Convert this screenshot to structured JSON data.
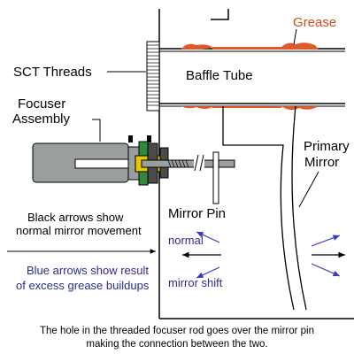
{
  "labels": {
    "grease": "Grease",
    "sct_threads": "SCT Threads",
    "baffle_tube": "Baffle Tube",
    "focuser_line1": "Focuser",
    "focuser_line2": "Assembly",
    "primary_line1": "Primary",
    "primary_line2": "Mirror",
    "mirror_pin": "Mirror Pin",
    "black_arrows_line1": "Black arrows show",
    "black_arrows_line2": "normal mirror movement",
    "blue_arrows_line1": "Blue arrows show result",
    "blue_arrows_line2": "of excess grease buildups",
    "normal": "normal",
    "mirror_shift": "mirror shift"
  },
  "caption": {
    "line1": "The hole in the threaded focuser rod goes over the mirror pin",
    "line2": "making the connection between the two."
  },
  "colors": {
    "grease": "#e0592a",
    "focuser_body": "#9a9e9f",
    "focuser_dark": "#4a4a4a",
    "collar_green": "#2f8a3c",
    "collar_yellow": "#e8c800",
    "blue_arrow": "#3a3ac0"
  }
}
